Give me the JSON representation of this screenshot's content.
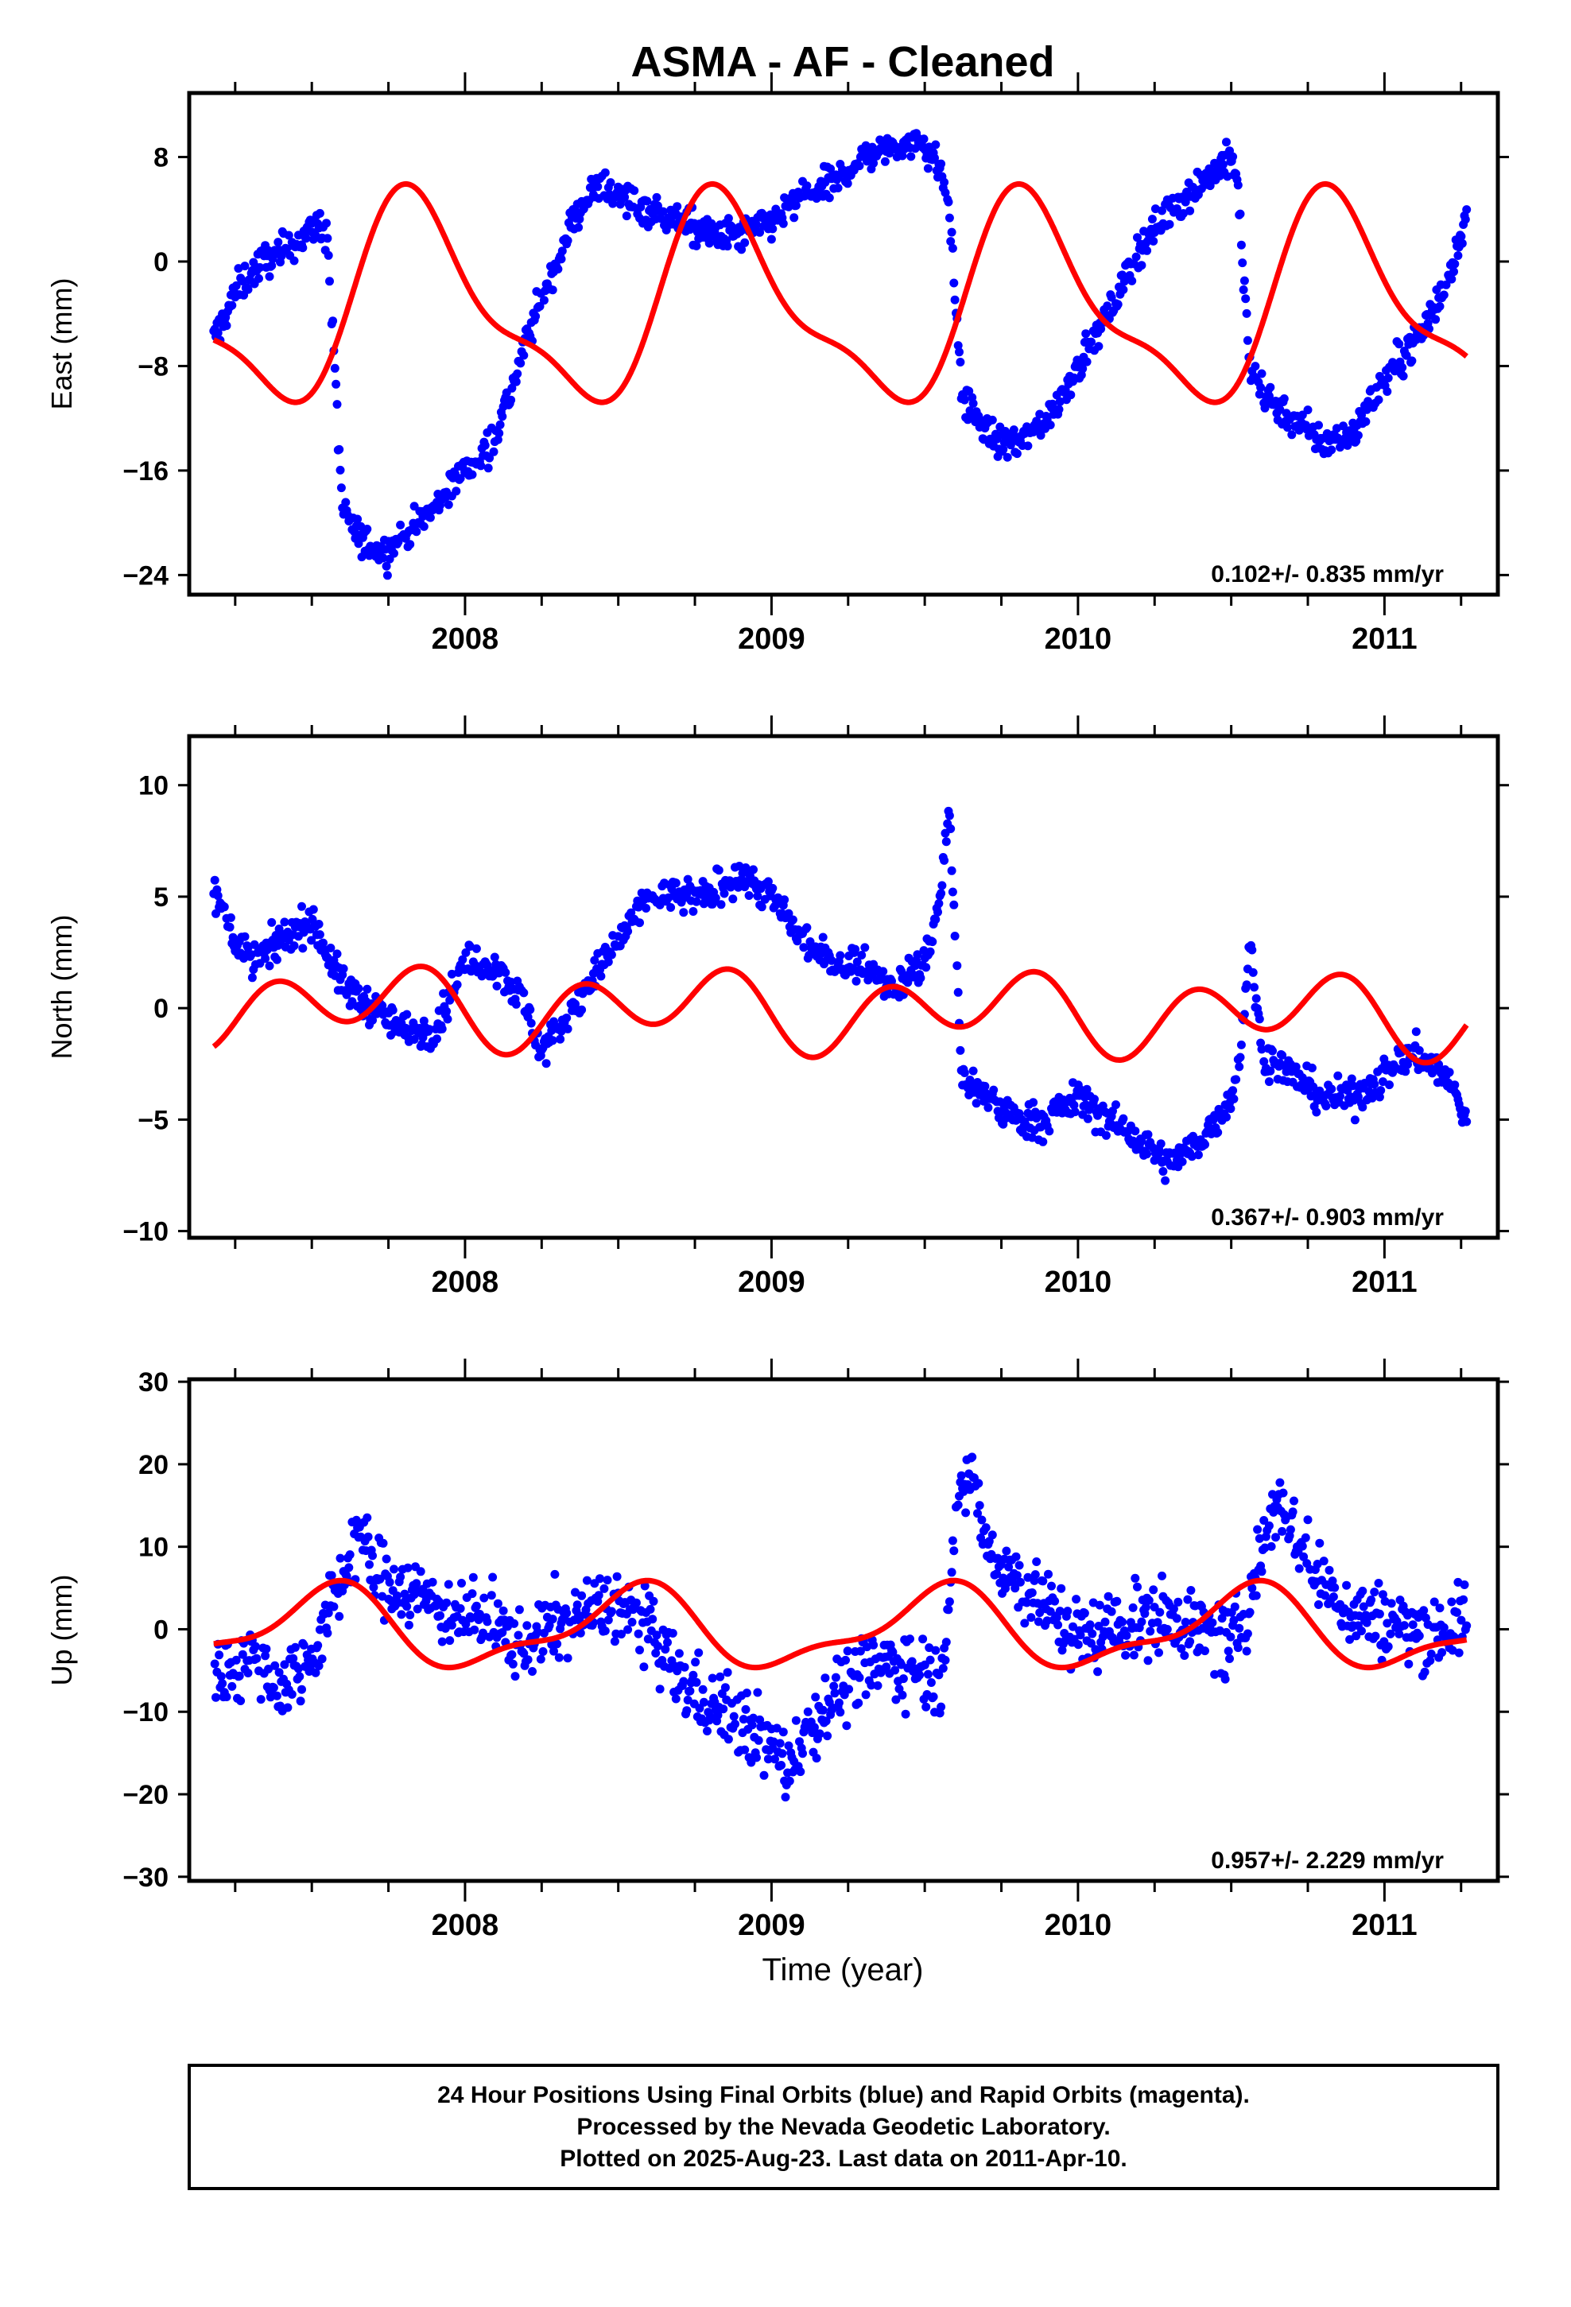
{
  "title": "ASMA  - AF - Cleaned",
  "footer": [
    "24 Hour Positions Using Final Orbits (blue) and Rapid Orbits (magenta).",
    "Processed by the Nevada Geodetic Laboratory.",
    "Plotted on 2025-Aug-23. Last data on 2011-Apr-10."
  ],
  "colors": {
    "points": "#0000ff",
    "model": "#ff0000",
    "frame": "#000000"
  },
  "chart_data": [
    {
      "type": "scatter",
      "ylabel": "East (mm)",
      "xlabel": "",
      "xlim": [
        2007.1,
        2011.37
      ],
      "ylim": [
        -25.5,
        12.9
      ],
      "yticks": [
        8,
        0,
        -8,
        -16,
        -24
      ],
      "ytick_labels": [
        "8",
        "0",
        "−8",
        "−16",
        "−24"
      ],
      "xticks": [
        2008,
        2009,
        2010,
        2011
      ],
      "xtick_labels": [
        "2008",
        "2009",
        "2010",
        "2011"
      ],
      "rate_label": "0.102+/- 0.835 mm/yr",
      "series": [
        {
          "name": "",
          "style": "points",
          "noise": 1.3,
          "x": [
            2007.18,
            2007.26,
            2007.34,
            2007.42,
            2007.48,
            2007.52,
            2007.55,
            2007.6,
            2007.65,
            2007.7,
            2007.75,
            2007.8,
            2007.85,
            2007.9,
            2007.95,
            2008.0,
            2008.05,
            2008.1,
            2008.15,
            2008.2,
            2008.25,
            2008.3,
            2008.35,
            2008.4,
            2008.45,
            2008.5,
            2008.6,
            2008.7,
            2008.8,
            2008.9,
            2009.0,
            2009.1,
            2009.2,
            2009.3,
            2009.4,
            2009.5,
            2009.55,
            2009.58,
            2009.62,
            2009.7,
            2009.75,
            2009.8,
            2009.9,
            2010.0,
            2010.1,
            2010.2,
            2010.3,
            2010.4,
            2010.5,
            2010.52,
            2010.56,
            2010.6,
            2010.7,
            2010.8,
            2010.9,
            2011.0,
            2011.1,
            2011.2,
            2011.27
          ],
          "y": [
            -6,
            -2,
            0,
            1,
            2,
            3,
            2,
            -19,
            -21,
            -22,
            -22,
            -21,
            -20,
            -19,
            -17,
            -16,
            -15,
            -13,
            -10,
            -6,
            -3,
            0,
            3,
            5,
            6,
            5,
            4,
            3,
            2,
            2,
            3,
            5,
            6,
            8,
            9,
            9,
            7,
            4,
            -10,
            -13,
            -14,
            -14,
            -12,
            -8,
            -4,
            1,
            4,
            6,
            8,
            6,
            -8,
            -10,
            -12,
            -14,
            -13,
            -9,
            -6,
            -2,
            4
          ]
        },
        {
          "name": "",
          "style": "line",
          "model": {
            "mean": -3.4,
            "trend": 0,
            "a1": 7.3,
            "p1": 0.6,
            "a2": 2.5,
            "p2": 0.15
          },
          "xrange": [
            2007.18,
            2011.27
          ]
        }
      ]
    },
    {
      "type": "scatter",
      "ylabel": "North (mm)",
      "xlabel": "",
      "xlim": [
        2007.1,
        2011.37
      ],
      "ylim": [
        -10.3,
        12.2
      ],
      "yticks": [
        10,
        5,
        0,
        -5,
        -10
      ],
      "ytick_labels": [
        "10",
        "5",
        "0",
        "−5",
        "−10"
      ],
      "xticks": [
        2008,
        2009,
        2010,
        2011
      ],
      "xtick_labels": [
        "2008",
        "2009",
        "2010",
        "2011"
      ],
      "rate_label": "0.367+/- 0.903 mm/yr",
      "series": [
        {
          "name": "",
          "style": "points",
          "noise": 0.8,
          "x": [
            2007.18,
            2007.22,
            2007.3,
            2007.4,
            2007.5,
            2007.6,
            2007.7,
            2007.8,
            2007.9,
            2008.0,
            2008.1,
            2008.2,
            2008.25,
            2008.3,
            2008.4,
            2008.5,
            2008.6,
            2008.7,
            2008.8,
            2008.9,
            2009.0,
            2009.05,
            2009.1,
            2009.2,
            2009.3,
            2009.4,
            2009.5,
            2009.55,
            2009.58,
            2009.62,
            2009.7,
            2009.8,
            2009.9,
            2010.0,
            2010.1,
            2010.2,
            2010.3,
            2010.4,
            2010.5,
            2010.53,
            2010.56,
            2010.6,
            2010.7,
            2010.8,
            2010.9,
            2011.0,
            2011.1,
            2011.2,
            2011.27
          ],
          "y": [
            5,
            4,
            2,
            3,
            4,
            1,
            0,
            -1,
            -1,
            2,
            2,
            0,
            -2,
            -1,
            1,
            3,
            5,
            5,
            5,
            6,
            5,
            4,
            3,
            2,
            2,
            1,
            2,
            5,
            9,
            -3,
            -4,
            -5,
            -5,
            -4,
            -5,
            -6,
            -7,
            -6,
            -4,
            -2,
            3,
            -2,
            -3,
            -4,
            -4,
            -3,
            -2,
            -3,
            -5
          ]
        },
        {
          "name": "",
          "style": "line",
          "model": {
            "mean": -0.07,
            "trend": -0.12,
            "a1": 0.8,
            "p1": 0.45,
            "a2": 1.4,
            "p2": 0.25
          },
          "xrange": [
            2007.18,
            2011.27
          ]
        }
      ]
    },
    {
      "type": "scatter",
      "ylabel": "Up (mm)",
      "xlabel": "Time (year)",
      "xlim": [
        2007.1,
        2011.37
      ],
      "ylim": [
        -30.5,
        30.3
      ],
      "yticks": [
        30,
        20,
        10,
        0,
        -10,
        -20,
        -30
      ],
      "ytick_labels": [
        "30",
        "20",
        "10",
        "0",
        "−10",
        "−20",
        "−30"
      ],
      "xticks": [
        2008,
        2009,
        2010,
        2011
      ],
      "xtick_labels": [
        "2008",
        "2009",
        "2010",
        "2011"
      ],
      "rate_label": "0.957+/- 2.229 mm/yr",
      "series": [
        {
          "name": "",
          "style": "points",
          "noise": 4.5,
          "x": [
            2007.18,
            2007.3,
            2007.4,
            2007.5,
            2007.6,
            2007.65,
            2007.7,
            2007.8,
            2007.9,
            2008.0,
            2008.1,
            2008.2,
            2008.3,
            2008.4,
            2008.5,
            2008.6,
            2008.7,
            2008.8,
            2008.9,
            2009.0,
            2009.05,
            2009.1,
            2009.2,
            2009.3,
            2009.4,
            2009.5,
            2009.55,
            2009.6,
            2009.65,
            2009.7,
            2009.8,
            2009.9,
            2010.0,
            2010.1,
            2010.2,
            2010.3,
            2010.4,
            2010.5,
            2010.55,
            2010.6,
            2010.65,
            2010.7,
            2010.8,
            2010.9,
            2011.0,
            2011.1,
            2011.2,
            2011.27
          ],
          "y": [
            -6,
            -3,
            -7,
            -3,
            6,
            12,
            7,
            5,
            3,
            2,
            0,
            -2,
            1,
            2,
            3,
            0,
            -6,
            -9,
            -11,
            -14,
            -17,
            -13,
            -8,
            -5,
            -4,
            -5,
            -6,
            12,
            20,
            10,
            6,
            3,
            -1,
            0,
            1,
            2,
            0,
            -2,
            2,
            10,
            16,
            12,
            5,
            2,
            1,
            0,
            0,
            1
          ]
        },
        {
          "name": "",
          "style": "line",
          "model": {
            "mean": 0,
            "trend": 0,
            "a1": 4.5,
            "p1": 0.3,
            "a2": 1.7,
            "p2": 0.0
          },
          "xrange": [
            2007.18,
            2011.27
          ]
        }
      ]
    }
  ]
}
